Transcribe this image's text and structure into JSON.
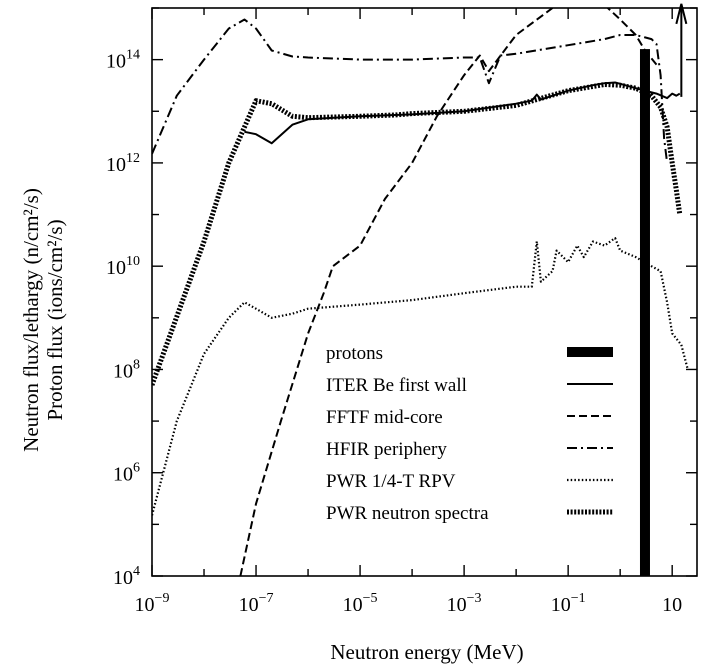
{
  "chart_data": {
    "type": "line",
    "xlabel": "Neutron energy (MeV)",
    "ylabel_line1": "Neutron flux/lethargy (n/cm²/s)",
    "ylabel_line2": "Proton flux (ions/cm²/s)",
    "x_scale": "log",
    "y_scale": "log",
    "xlim": [
      1e-09,
      30
    ],
    "ylim": [
      10000,
      1000000000000000.0
    ],
    "x_ticks": [
      {
        "value": 1e-09,
        "base": "10",
        "exp": "−9"
      },
      {
        "value": 1e-07,
        "base": "10",
        "exp": "−7"
      },
      {
        "value": 1e-05,
        "base": "10",
        "exp": "−5"
      },
      {
        "value": 0.001,
        "base": "10",
        "exp": "−3"
      },
      {
        "value": 0.1,
        "base": "10",
        "exp": "−1"
      },
      {
        "value": 10,
        "base": "10",
        "exp": ""
      }
    ],
    "y_ticks": [
      {
        "value": 10000,
        "base": "10",
        "exp": "4"
      },
      {
        "value": 1000000.0,
        "base": "10",
        "exp": "6"
      },
      {
        "value": 100000000.0,
        "base": "10",
        "exp": "8"
      },
      {
        "value": 10000000000.0,
        "base": "10",
        "exp": "10"
      },
      {
        "value": 1000000000000.0,
        "base": "10",
        "exp": "12"
      },
      {
        "value": 100000000000000.0,
        "base": "10",
        "exp": "14"
      }
    ],
    "legend_position": "inside-bottom-right",
    "grid": false,
    "series": [
      {
        "name": "protons",
        "style": "bar",
        "x": 3,
        "y": 160000000000000.0,
        "arrow": {
          "x": 15,
          "y_from": 19000000000000.0,
          "y_to": 1200000000000000.0
        }
      },
      {
        "name": "ITER Be first wall",
        "style": "solid",
        "x": [
          6e-08,
          1e-07,
          2e-07,
          5e-07,
          1e-06,
          1e-05,
          0.0001,
          0.001,
          0.01,
          0.02,
          0.025,
          0.03,
          0.1,
          0.3,
          0.5,
          0.8,
          1,
          2,
          3,
          5,
          8,
          10,
          12,
          14
        ],
        "y": [
          4000000000000.0,
          3600000000000.0,
          2400000000000.0,
          5500000000000.0,
          7000000000000.0,
          8000000000000.0,
          8700000000000.0,
          10000000000000.0,
          14000000000000.0,
          16000000000000.0,
          21000000000000.0,
          17000000000000.0,
          25000000000000.0,
          32000000000000.0,
          35000000000000.0,
          36000000000000.0,
          34000000000000.0,
          28000000000000.0,
          25000000000000.0,
          22000000000000.0,
          18000000000000.0,
          22000000000000.0,
          20000000000000.0,
          22000000000000.0
        ]
      },
      {
        "name": "FFTF mid-core",
        "style": "dashed",
        "x": [
          5e-08,
          1e-07,
          3e-07,
          1e-06,
          2e-06,
          3e-06,
          1e-05,
          3e-05,
          0.0001,
          0.0003,
          0.001,
          0.002,
          0.003,
          0.01,
          0.05,
          0.1,
          0.3,
          0.5,
          1,
          2,
          3,
          5
        ],
        "y": [
          10000,
          250000.0,
          10000000.0,
          500000000.0,
          3000000000.0,
          10000000000.0,
          25000000000.0,
          200000000000.0,
          1000000000000.0,
          8000000000000.0,
          50000000000000.0,
          120000000000000.0,
          60000000000000.0,
          300000000000000.0,
          1000000000000000.0,
          1200000000000000.0,
          1250000000000000.0,
          1150000000000000.0,
          600000000000000.0,
          300000000000000.0,
          150000000000000.0,
          80000000000000.0
        ]
      },
      {
        "name": "HFIR periphery",
        "style": "dash-dot",
        "x": [
          1e-09,
          3e-09,
          1e-08,
          3e-08,
          6e-08,
          1e-07,
          2e-07,
          5e-07,
          1e-06,
          1e-05,
          0.0001,
          0.001,
          0.002,
          0.003,
          0.005,
          0.01,
          0.1,
          0.5,
          1,
          2,
          3,
          4,
          5,
          6,
          7,
          8
        ],
        "y": [
          1500000000000.0,
          20000000000000.0,
          100000000000000.0,
          400000000000000.0,
          600000000000000.0,
          400000000000000.0,
          150000000000000.0,
          115000000000000.0,
          110000000000000.0,
          100000000000000.0,
          100000000000000.0,
          110000000000000.0,
          110000000000000.0,
          35000000000000.0,
          120000000000000.0,
          130000000000000.0,
          190000000000000.0,
          250000000000000.0,
          300000000000000.0,
          300000000000000.0,
          270000000000000.0,
          250000000000000.0,
          200000000000000.0,
          50000000000000.0,
          3000000000000.0,
          1000000000000.0
        ]
      },
      {
        "name": "PWR 1/4-T RPV",
        "style": "dotted",
        "x": [
          1e-09,
          3e-09,
          1e-08,
          3e-08,
          6e-08,
          1e-07,
          2e-07,
          5e-07,
          1e-06,
          1e-05,
          0.0001,
          0.001,
          0.01,
          0.02,
          0.025,
          0.03,
          0.05,
          0.06,
          0.1,
          0.15,
          0.2,
          0.3,
          0.5,
          0.8,
          1,
          2,
          4,
          6,
          8,
          10,
          15,
          20
        ],
        "y": [
          150000.0,
          10000000.0,
          200000000.0,
          1000000000.0,
          2000000000.0,
          1500000000.0,
          1000000000.0,
          1200000000.0,
          1500000000.0,
          1800000000.0,
          2200000000.0,
          3000000000.0,
          4000000000.0,
          4000000000.0,
          30000000000.0,
          5000000000.0,
          8000000000.0,
          20000000000.0,
          12000000000.0,
          25000000000.0,
          15000000000.0,
          30000000000.0,
          25000000000.0,
          35000000000.0,
          20000000000.0,
          15000000000.0,
          10000000000.0,
          8000000000.0,
          2000000000.0,
          500000000.0,
          300000000.0,
          100000000.0
        ]
      },
      {
        "name": "PWR neutron spectra",
        "style": "heavy-dotted",
        "x": [
          1e-09,
          1e-08,
          3e-08,
          1e-07,
          2e-07,
          5e-07,
          1e-06,
          1e-05,
          5e-05,
          0.0001,
          0.001,
          0.01,
          0.1,
          0.5,
          1,
          2,
          4,
          6,
          8,
          10,
          12,
          14
        ],
        "y": [
          50000000.0,
          30000000000.0,
          1000000000000.0,
          16000000000000.0,
          14000000000000.0,
          8000000000000.0,
          7500000000000.0,
          8000000000000.0,
          8500000000000.0,
          9000000000000.0,
          10000000000000.0,
          13000000000000.0,
          25000000000000.0,
          33000000000000.0,
          32000000000000.0,
          28000000000000.0,
          20000000000000.0,
          12000000000000.0,
          5000000000000.0,
          1000000000000.0,
          300000000000.0,
          100000000000.0
        ]
      }
    ]
  }
}
